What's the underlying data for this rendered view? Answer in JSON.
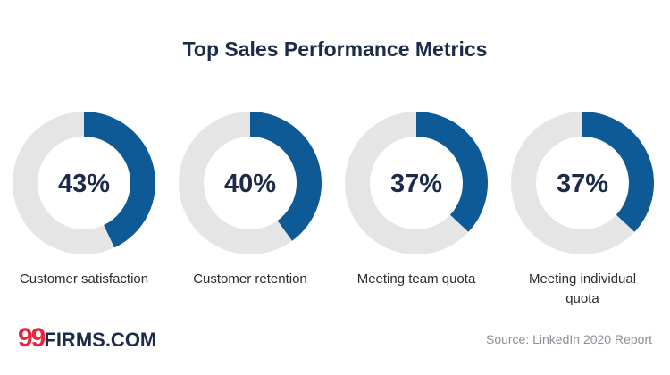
{
  "chart_data": {
    "type": "donut",
    "title": "Top Sales Performance Metrics",
    "categories": [
      "Customer satisfaction",
      "Customer retention",
      "Meeting team quota",
      "Meeting individual quota"
    ],
    "values": [
      43,
      40,
      37,
      37
    ],
    "value_labels": [
      "43%",
      "40%",
      "37%",
      "37%"
    ],
    "total": 100,
    "color": "#0d5a96",
    "track_color": "#e5e5e5"
  },
  "brand": {
    "mark": "99",
    "name": "FIRMS.COM"
  },
  "source": "Source: LinkedIn 2020 Report"
}
